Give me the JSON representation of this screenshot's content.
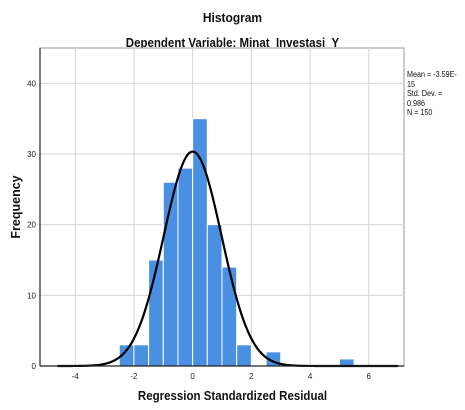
{
  "chart_data": {
    "type": "bar",
    "title": "Histogram",
    "subtitle": "Dependent Variable: Minat_Investasi_Y",
    "xlabel": "Regression Standardized Residual",
    "ylabel": "Frequency",
    "xlim": [
      -5.2,
      7.2
    ],
    "ylim": [
      0,
      45
    ],
    "x_ticks": [
      -4,
      -2,
      0,
      2,
      4,
      6
    ],
    "y_ticks": [
      0,
      10,
      20,
      30,
      40
    ],
    "bin_width": 0.5,
    "bins": [
      {
        "start": -2.5,
        "end": -2.0,
        "value": 3
      },
      {
        "start": -2.0,
        "end": -1.5,
        "value": 3
      },
      {
        "start": -1.5,
        "end": -1.0,
        "value": 15
      },
      {
        "start": -1.0,
        "end": -0.5,
        "value": 26
      },
      {
        "start": -0.5,
        "end": 0.0,
        "value": 28
      },
      {
        "start": 0.0,
        "end": 0.5,
        "value": 35
      },
      {
        "start": 0.5,
        "end": 1.0,
        "value": 20
      },
      {
        "start": 1.0,
        "end": 1.5,
        "value": 14
      },
      {
        "start": 1.5,
        "end": 2.0,
        "value": 3
      },
      {
        "start": 2.5,
        "end": 3.0,
        "value": 2
      },
      {
        "start": 5.0,
        "end": 5.5,
        "value": 1
      }
    ],
    "normal_curve": {
      "mean": 0,
      "std": 0.986,
      "n": 150
    },
    "grid": true,
    "bar_color": "#4a90e2",
    "bar_edge_color": "#ffffff",
    "curve_color": "#000000",
    "stats": [
      "Mean = -3.59E-15",
      "Std. Dev. = 0.986",
      "N = 150"
    ]
  }
}
